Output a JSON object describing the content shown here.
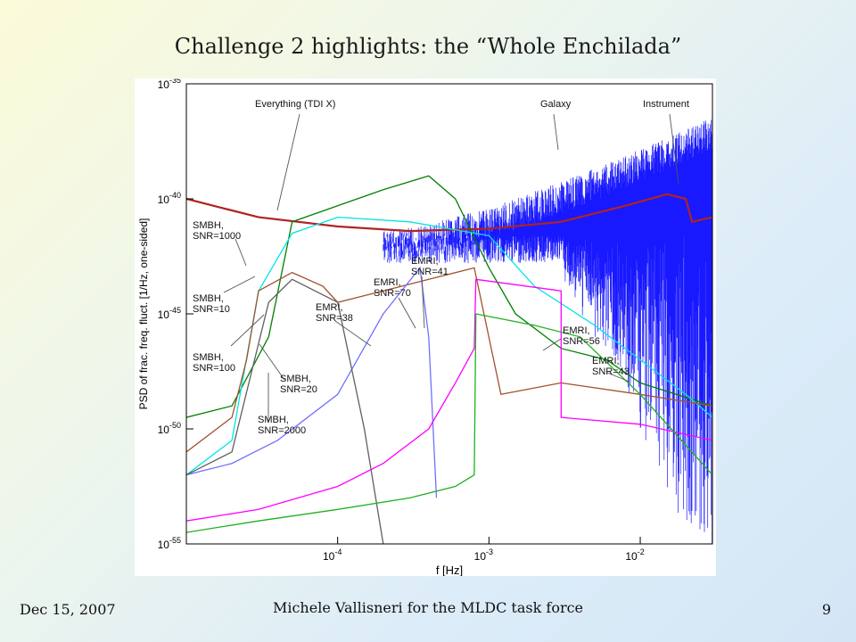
{
  "slide": {
    "title": "Challenge 2 highlights: the “Whole Enchilada”",
    "footer_date": "Dec 15, 2007",
    "footer_author": "Michele Vallisneri for the MLDC task force",
    "page_number": "9"
  },
  "chart_data": {
    "type": "line",
    "log_x": true,
    "log_y": true,
    "xlabel": "f [Hz]",
    "ylabel": "PSD of frac. freq. fluct. [1/Hz, one-sided]",
    "xlim": [
      1e-05,
      0.03
    ],
    "ylim": [
      1e-55,
      1e-35
    ],
    "x_tick_labels": [
      {
        "value": 0.0001,
        "label": "10",
        "exp": "-4"
      },
      {
        "value": 0.001,
        "label": "10",
        "exp": "-3"
      },
      {
        "value": 0.01,
        "label": "10",
        "exp": "-2"
      }
    ],
    "y_tick_labels": [
      {
        "value": 1e-35,
        "label": "10",
        "exp": "-35"
      },
      {
        "value": 1e-40,
        "label": "10",
        "exp": "-40"
      },
      {
        "value": 1e-45,
        "label": "10",
        "exp": "-45"
      },
      {
        "value": 1e-50,
        "label": "10",
        "exp": "-50"
      },
      {
        "value": 1e-55,
        "label": "10",
        "exp": "-55"
      }
    ],
    "series": [
      {
        "color": "#b22222",
        "x": [
          1e-05,
          3e-05,
          0.0001,
          0.0003,
          0.001,
          0.003,
          0.008,
          0.015,
          0.02,
          0.022,
          0.03
        ],
        "y": [
          -40.0,
          -40.8,
          -41.2,
          -41.4,
          -41.3,
          -41.0,
          -40.3,
          -39.8,
          -40.0,
          -41.0,
          -40.8
        ]
      },
      {
        "color": "#008000",
        "x": [
          1e-05,
          2e-05,
          3.5e-05,
          5e-05,
          0.0001,
          0.0002,
          0.0004,
          0.0006,
          0.001,
          0.0015,
          0.003,
          0.006,
          0.01,
          0.03
        ],
        "y": [
          -49.5,
          -49.0,
          -46.0,
          -41.0,
          -40.3,
          -39.6,
          -39.0,
          -40.0,
          -43.0,
          -45.0,
          -46.5,
          -47.0,
          -48.0,
          -49.0
        ]
      },
      {
        "color": "#00e5e5",
        "x": [
          1e-05,
          2e-05,
          3e-05,
          5e-05,
          0.0001,
          0.0003,
          0.001,
          0.002,
          0.005,
          0.01,
          0.02,
          0.03
        ],
        "y": [
          -52.0,
          -50.5,
          -44.0,
          -41.5,
          -40.8,
          -41.0,
          -41.6,
          -43.8,
          -45.5,
          -47.0,
          -48.5,
          -49.5
        ]
      },
      {
        "color": "#a0522d",
        "x": [
          1e-05,
          2e-05,
          2.5e-05,
          3e-05,
          5e-05,
          8e-05,
          0.0001,
          0.0002,
          0.0004,
          0.0008,
          0.0012,
          0.003,
          0.01,
          0.03
        ],
        "y": [
          -51.0,
          -49.5,
          -47.0,
          -44.0,
          -43.2,
          -43.8,
          -44.5,
          -44.0,
          -43.5,
          -43.0,
          -48.5,
          -48.0,
          -48.5,
          -49.0
        ]
      },
      {
        "color": "#7070ff",
        "x": [
          1e-05,
          2e-05,
          4e-05,
          0.0001,
          0.0002,
          0.00035,
          0.0004,
          0.00045
        ],
        "y": [
          -52.0,
          -51.5,
          -50.5,
          -48.5,
          -45.0,
          -43.0,
          -46.0,
          -53.0
        ]
      },
      {
        "color": "#606060",
        "x": [
          1e-05,
          2e-05,
          3.5e-05,
          5e-05,
          0.0001,
          0.00015,
          0.0002,
          0.00025
        ],
        "y": [
          -52.0,
          -51.0,
          -44.5,
          -43.5,
          -44.5,
          -50.0,
          -55.0,
          -57.0
        ]
      },
      {
        "color": "#ff00ff",
        "x": [
          1e-05,
          3e-05,
          0.0001,
          0.0002,
          0.0004,
          0.0006,
          0.0008,
          0.00082,
          0.003,
          0.003,
          0.01,
          0.03
        ],
        "y": [
          -54.0,
          -53.5,
          -52.5,
          -51.5,
          -50.0,
          -48.0,
          -46.5,
          -43.5,
          -44.0,
          -49.5,
          -49.8,
          -50.5
        ]
      },
      {
        "color": "#20b020",
        "x": [
          1e-05,
          3e-05,
          0.0001,
          0.0003,
          0.0006,
          0.0008,
          0.00082,
          0.002,
          0.004,
          0.01,
          0.03
        ],
        "y": [
          -54.5,
          -54.0,
          -53.5,
          -53.0,
          -52.5,
          -52.0,
          -45.0,
          -45.5,
          -46.0,
          -48.5,
          -52.0
        ]
      }
    ],
    "galaxy_band": {
      "color": "#0000ff",
      "x_range": [
        0.0002,
        0.03
      ],
      "y_range": [
        -55.0,
        -36.5
      ]
    },
    "annotations": [
      {
        "text": "Everything (TDI X)"
      },
      {
        "text": "Galaxy"
      },
      {
        "text": "Instrument"
      },
      {
        "lines": [
          "SMBH,",
          "SNR=1000"
        ]
      },
      {
        "lines": [
          "SMBH,",
          "SNR=10"
        ]
      },
      {
        "lines": [
          "SMBH,",
          "SNR=100"
        ]
      },
      {
        "lines": [
          "SMBH,",
          "SNR=20"
        ]
      },
      {
        "lines": [
          "SMBH,",
          "SNR=2000"
        ]
      },
      {
        "lines": [
          "EMRI,",
          "SNR=38"
        ]
      },
      {
        "lines": [
          "EMRI,",
          "SNR=70"
        ]
      },
      {
        "lines": [
          "EMRI,",
          "SNR=41"
        ]
      },
      {
        "lines": [
          "EMRI,",
          "SNR=56"
        ]
      },
      {
        "lines": [
          "EMRI,",
          "SNR=43"
        ]
      }
    ]
  }
}
